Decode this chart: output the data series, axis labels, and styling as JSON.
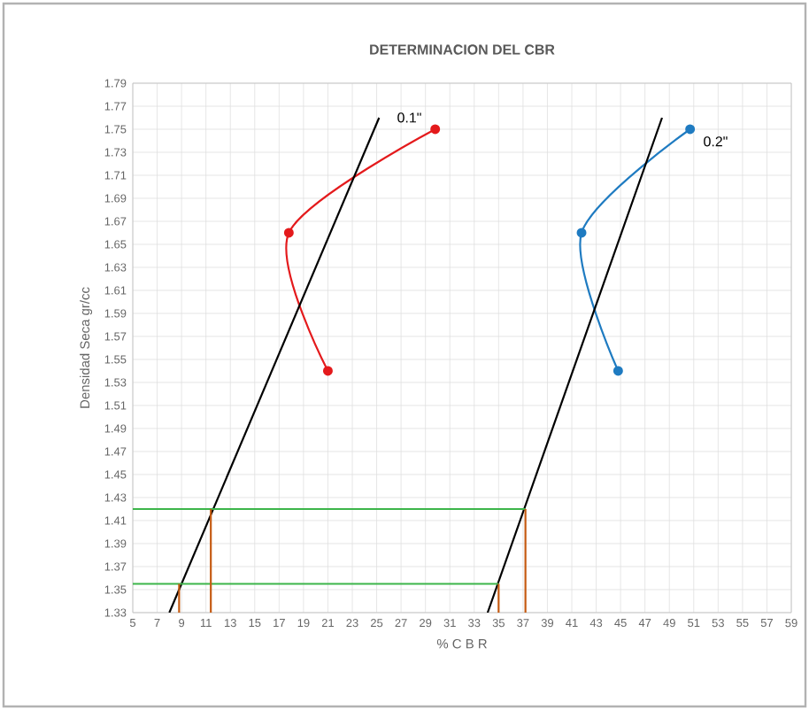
{
  "chart_data": {
    "type": "line",
    "title": "DETERMINACION DEL CBR",
    "xlabel": "% C B R",
    "ylabel": "Densidad Seca gr/cc",
    "xlim": [
      5,
      59
    ],
    "xticks": [
      5,
      7,
      9,
      11,
      13,
      15,
      17,
      19,
      21,
      23,
      25,
      27,
      29,
      31,
      33,
      35,
      37,
      39,
      41,
      43,
      45,
      47,
      49,
      51,
      53,
      55,
      57,
      59
    ],
    "ylim": [
      1.33,
      1.79
    ],
    "yticks": [
      1.33,
      1.35,
      1.37,
      1.39,
      1.41,
      1.43,
      1.45,
      1.47,
      1.49,
      1.51,
      1.53,
      1.55,
      1.57,
      1.59,
      1.61,
      1.63,
      1.65,
      1.67,
      1.69,
      1.71,
      1.73,
      1.75,
      1.77,
      1.79
    ],
    "grid": true,
    "line_style": "solid",
    "series": [
      {
        "color": "#e41a1c",
        "marker": "circle",
        "x": [
          21,
          17.8,
          29.8
        ],
        "values": [
          1.54,
          1.66,
          1.75
        ]
      },
      {
        "color": "#1f7bc1",
        "marker": "circle",
        "x": [
          44.8,
          41.8,
          50.7
        ],
        "values": [
          1.54,
          1.66,
          1.75
        ]
      },
      {
        "color": "#000000",
        "marker": "none",
        "x": [
          8,
          25.2
        ],
        "values": [
          1.33,
          1.76
        ]
      },
      {
        "color": "#000000",
        "marker": "none",
        "x": [
          34.1,
          48.4
        ],
        "values": [
          1.33,
          1.76
        ]
      },
      {
        "color": "#3cb54a",
        "marker": "none",
        "x": [
          5,
          37.2
        ],
        "values": [
          1.42,
          1.42
        ]
      },
      {
        "color": "#3cb54a",
        "marker": "none",
        "x": [
          5,
          35
        ],
        "values": [
          1.355,
          1.355
        ]
      },
      {
        "color": "#c55a11",
        "marker": "none",
        "x": [
          11.4,
          11.4
        ],
        "values": [
          1.33,
          1.42
        ]
      },
      {
        "color": "#c55a11",
        "marker": "none",
        "x": [
          37.2,
          37.2
        ],
        "values": [
          1.33,
          1.42
        ]
      },
      {
        "color": "#c55a11",
        "marker": "none",
        "x": [
          8.8,
          8.8
        ],
        "values": [
          1.33,
          1.355
        ]
      },
      {
        "color": "#c55a11",
        "marker": "none",
        "x": [
          35,
          35
        ],
        "values": [
          1.33,
          1.355
        ]
      }
    ],
    "annotations": [
      "0.1\"",
      "0.2\""
    ]
  }
}
